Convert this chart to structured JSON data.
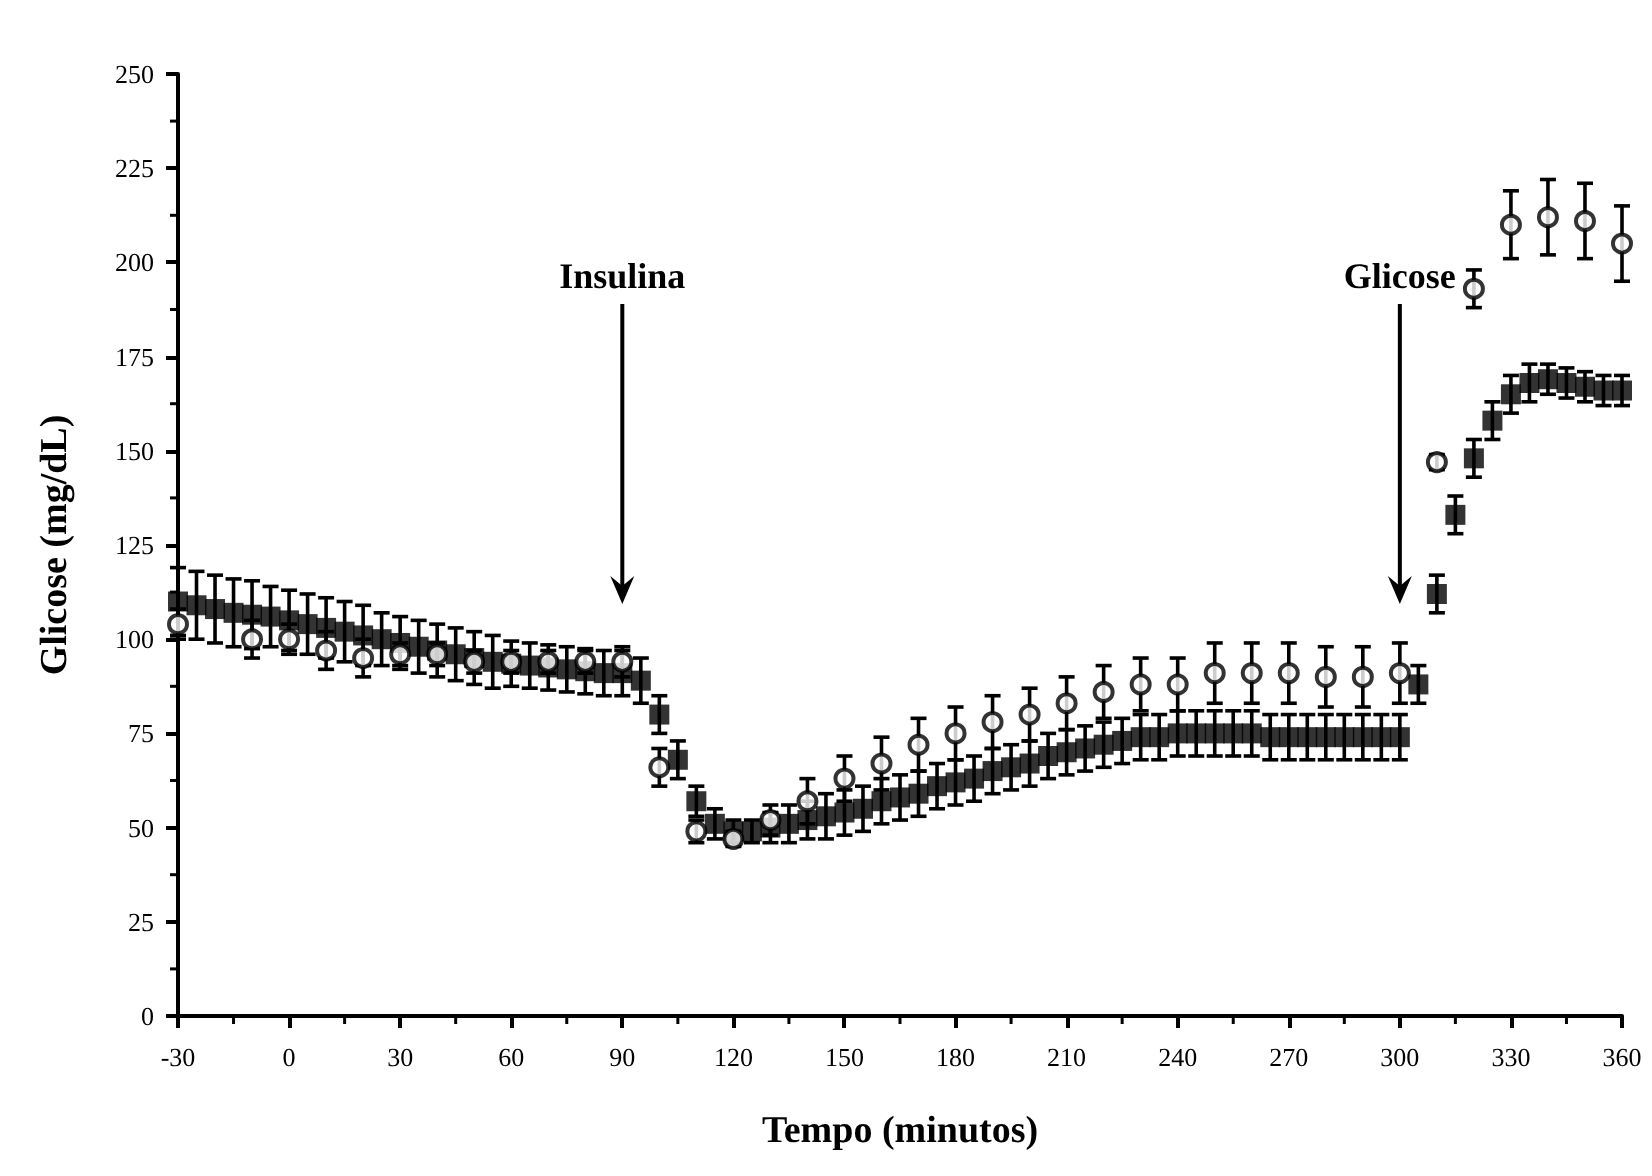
{
  "chart_data": {
    "type": "scatter",
    "xlabel": "Tempo (minutos)",
    "ylabel": "Glicose (mg/dL)",
    "xlim": [
      -30,
      360
    ],
    "xticks": [
      -30,
      0,
      30,
      60,
      90,
      120,
      150,
      180,
      210,
      240,
      270,
      300,
      330,
      360
    ],
    "ylim": [
      0,
      250
    ],
    "yticks": [
      0,
      25,
      50,
      75,
      100,
      125,
      150,
      175,
      200,
      225,
      250
    ],
    "grid": false,
    "ref_lines": [
      {
        "axis": "x",
        "value": 90,
        "label": "Insulina"
      },
      {
        "axis": "x",
        "value": 300,
        "label": "Glicose"
      }
    ],
    "series": [
      {
        "color": "#000000",
        "marker": "circle",
        "x": [
          -30,
          -10,
          0,
          10,
          20,
          30,
          40,
          50,
          60,
          70,
          80,
          90,
          100,
          110,
          120,
          130,
          140,
          150,
          160,
          170,
          180,
          190,
          200,
          210,
          220,
          230,
          240,
          250,
          260,
          270,
          280,
          290,
          300,
          310,
          320,
          330,
          340,
          350,
          360
        ],
        "values": [
          104,
          100,
          100,
          97,
          95,
          96,
          96,
          94,
          94,
          94,
          94,
          94,
          66,
          49,
          47,
          52,
          57,
          63,
          67,
          72,
          75,
          78,
          80,
          83,
          86,
          88,
          88,
          91,
          91,
          91,
          90,
          90,
          91,
          147,
          193,
          210,
          212,
          211,
          205
        ],
        "errors": [
          4,
          5,
          4,
          5,
          5,
          3,
          3,
          3,
          3,
          3,
          3,
          4,
          5,
          3,
          2,
          4,
          6,
          6,
          7,
          7,
          7,
          7,
          7,
          7,
          7,
          7,
          7,
          8,
          8,
          8,
          8,
          8,
          8,
          2,
          5,
          9,
          10,
          10,
          10
        ]
      },
      {
        "color": "#000000",
        "marker": "square",
        "x": [
          -30,
          -25,
          -20,
          -15,
          -10,
          -5,
          0,
          5,
          10,
          15,
          20,
          25,
          30,
          35,
          40,
          45,
          50,
          55,
          60,
          65,
          70,
          75,
          80,
          85,
          90,
          95,
          100,
          105,
          110,
          115,
          120,
          125,
          130,
          135,
          140,
          145,
          150,
          155,
          160,
          165,
          170,
          175,
          180,
          185,
          190,
          195,
          200,
          205,
          210,
          215,
          220,
          225,
          230,
          235,
          240,
          245,
          250,
          255,
          260,
          265,
          270,
          275,
          280,
          285,
          290,
          295,
          300,
          305,
          310,
          315,
          320,
          325,
          330,
          335,
          340,
          345,
          350,
          355,
          360
        ],
        "values": [
          110,
          109,
          108,
          107,
          106.5,
          106,
          105,
          104,
          103,
          102,
          101,
          100,
          99,
          98,
          97,
          96,
          95,
          94,
          93.5,
          93,
          92.5,
          92,
          91.5,
          91,
          91,
          89,
          80,
          68,
          57,
          51,
          49,
          49,
          50,
          51,
          52,
          53,
          54,
          55,
          57,
          58,
          59,
          61,
          62,
          63,
          65,
          66,
          67,
          69,
          70,
          71,
          72,
          73,
          74,
          74,
          75,
          75,
          75,
          75,
          75,
          74,
          74,
          74,
          74,
          74,
          74,
          74,
          74,
          88,
          112,
          133,
          148,
          158,
          165,
          168,
          169,
          168,
          167,
          166,
          166
        ],
        "errors": [
          9,
          9,
          9,
          9,
          9,
          8,
          8,
          8,
          8,
          8,
          8,
          7,
          7,
          7,
          7,
          7,
          7,
          7,
          6,
          6,
          6,
          6,
          6,
          6,
          6,
          6,
          5,
          5,
          4,
          4,
          3,
          3,
          4,
          5,
          5,
          6,
          6,
          6,
          6,
          6,
          6,
          6,
          6,
          6,
          6,
          6,
          6,
          6,
          6,
          6,
          6,
          6,
          6,
          6,
          6,
          6,
          6,
          6,
          6,
          6,
          6,
          6,
          6,
          6,
          6,
          6,
          6,
          5,
          5,
          5,
          5,
          5,
          5,
          5,
          4,
          4,
          4,
          4,
          4
        ]
      }
    ]
  }
}
